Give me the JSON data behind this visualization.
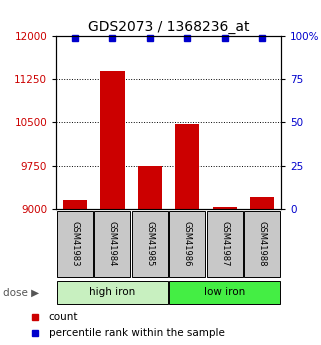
{
  "title": "GDS2073 / 1368236_at",
  "samples": [
    "GSM41983",
    "GSM41984",
    "GSM41985",
    "GSM41986",
    "GSM41987",
    "GSM41988"
  ],
  "counts": [
    9150,
    11400,
    9750,
    10480,
    9030,
    9200
  ],
  "percentiles": [
    99,
    99,
    99,
    99,
    99,
    99
  ],
  "ylim_left": [
    9000,
    12000
  ],
  "ylim_right": [
    0,
    100
  ],
  "yticks_left": [
    9000,
    9750,
    10500,
    11250,
    12000
  ],
  "yticks_right": [
    0,
    25,
    50,
    75,
    100
  ],
  "groups": [
    {
      "label": "high iron",
      "indices": [
        0,
        1,
        2
      ],
      "color": "#c8f0c0"
    },
    {
      "label": "low iron",
      "indices": [
        3,
        4,
        5
      ],
      "color": "#44ee44"
    }
  ],
  "bar_color": "#cc0000",
  "dot_color": "#0000cc",
  "bar_width": 0.65,
  "title_fontsize": 10,
  "tick_fontsize": 7.5,
  "left_tick_color": "#cc0000",
  "right_tick_color": "#0000cc",
  "group_box_color": "#c8c8c8",
  "dose_label": "dose"
}
